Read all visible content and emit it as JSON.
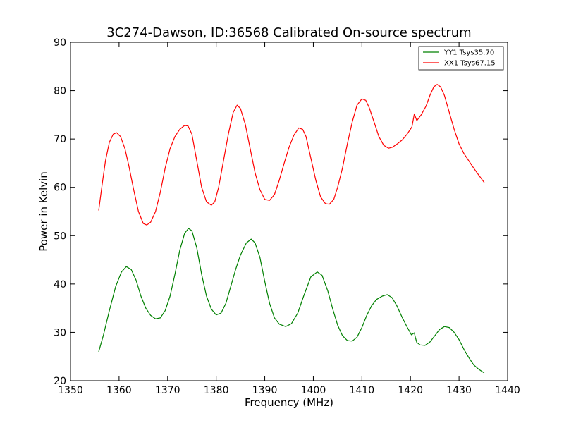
{
  "chart_data": {
    "type": "line",
    "title": "3C274-Dawson, ID:36568 Calibrated On-source spectrum",
    "xlabel": "Frequency (MHz)",
    "ylabel": "Power in Kelvin",
    "xlim": [
      1350,
      1440
    ],
    "ylim": [
      20,
      90
    ],
    "xticks": [
      "1350",
      "1360",
      "1370",
      "1380",
      "1390",
      "1400",
      "1410",
      "1420",
      "1430",
      "1440"
    ],
    "yticks": [
      "20",
      "30",
      "40",
      "50",
      "60",
      "70",
      "80",
      "90"
    ],
    "grid": false,
    "legend_position": "top-right",
    "series": [
      {
        "name": "YY1 Tsys35.70",
        "color": "#008000",
        "points": [
          [
            1355.8,
            26.0
          ],
          [
            1356.8,
            29.5
          ],
          [
            1358.0,
            34.5
          ],
          [
            1359.3,
            39.5
          ],
          [
            1360.5,
            42.5
          ],
          [
            1361.5,
            43.6
          ],
          [
            1362.5,
            43.0
          ],
          [
            1363.5,
            40.8
          ],
          [
            1364.5,
            37.5
          ],
          [
            1365.5,
            35.0
          ],
          [
            1366.5,
            33.5
          ],
          [
            1367.5,
            32.8
          ],
          [
            1368.5,
            33.0
          ],
          [
            1369.5,
            34.5
          ],
          [
            1370.5,
            37.5
          ],
          [
            1371.5,
            42.0
          ],
          [
            1372.5,
            47.0
          ],
          [
            1373.5,
            50.5
          ],
          [
            1374.3,
            51.5
          ],
          [
            1375.0,
            51.0
          ],
          [
            1376.0,
            47.5
          ],
          [
            1377.0,
            42.0
          ],
          [
            1378.0,
            37.5
          ],
          [
            1379.0,
            34.8
          ],
          [
            1380.0,
            33.6
          ],
          [
            1381.0,
            34.0
          ],
          [
            1382.0,
            36.0
          ],
          [
            1383.0,
            39.5
          ],
          [
            1384.0,
            43.0
          ],
          [
            1385.0,
            46.0
          ],
          [
            1386.2,
            48.5
          ],
          [
            1387.2,
            49.3
          ],
          [
            1388.0,
            48.5
          ],
          [
            1389.0,
            45.5
          ],
          [
            1390.0,
            40.5
          ],
          [
            1391.0,
            36.0
          ],
          [
            1392.0,
            33.0
          ],
          [
            1393.0,
            31.7
          ],
          [
            1394.3,
            31.2
          ],
          [
            1395.5,
            31.8
          ],
          [
            1396.8,
            34.0
          ],
          [
            1398.0,
            37.5
          ],
          [
            1399.5,
            41.5
          ],
          [
            1400.8,
            42.5
          ],
          [
            1401.8,
            41.8
          ],
          [
            1403.0,
            38.5
          ],
          [
            1404.0,
            34.8
          ],
          [
            1405.0,
            31.5
          ],
          [
            1406.0,
            29.3
          ],
          [
            1407.0,
            28.3
          ],
          [
            1408.0,
            28.2
          ],
          [
            1409.0,
            29.0
          ],
          [
            1410.0,
            31.0
          ],
          [
            1411.0,
            33.5
          ],
          [
            1412.0,
            35.5
          ],
          [
            1413.0,
            36.8
          ],
          [
            1414.2,
            37.5
          ],
          [
            1415.2,
            37.8
          ],
          [
            1416.2,
            37.2
          ],
          [
            1417.2,
            35.5
          ],
          [
            1418.2,
            33.3
          ],
          [
            1419.2,
            31.3
          ],
          [
            1420.2,
            29.5
          ],
          [
            1420.8,
            29.9
          ],
          [
            1421.0,
            29.0
          ],
          [
            1421.3,
            27.9
          ],
          [
            1422.0,
            27.4
          ],
          [
            1423.0,
            27.3
          ],
          [
            1424.0,
            28.0
          ],
          [
            1425.0,
            29.3
          ],
          [
            1426.0,
            30.6
          ],
          [
            1427.0,
            31.2
          ],
          [
            1428.0,
            31.0
          ],
          [
            1429.0,
            30.0
          ],
          [
            1430.0,
            28.5
          ],
          [
            1431.0,
            26.5
          ],
          [
            1432.0,
            24.8
          ],
          [
            1433.0,
            23.3
          ],
          [
            1434.0,
            22.4
          ],
          [
            1435.2,
            21.6
          ]
        ]
      },
      {
        "name": "XX1 Tsys67.15",
        "color": "#ff0000",
        "points": [
          [
            1355.8,
            55.2
          ],
          [
            1356.5,
            60.5
          ],
          [
            1357.2,
            65.5
          ],
          [
            1358.0,
            69.3
          ],
          [
            1358.8,
            71.0
          ],
          [
            1359.5,
            71.3
          ],
          [
            1360.3,
            70.5
          ],
          [
            1361.2,
            68.0
          ],
          [
            1362.0,
            64.5
          ],
          [
            1363.0,
            59.5
          ],
          [
            1364.0,
            55.0
          ],
          [
            1365.0,
            52.5
          ],
          [
            1365.7,
            52.2
          ],
          [
            1366.5,
            52.8
          ],
          [
            1367.5,
            55.0
          ],
          [
            1368.5,
            59.0
          ],
          [
            1369.5,
            64.0
          ],
          [
            1370.5,
            68.0
          ],
          [
            1371.5,
            70.5
          ],
          [
            1372.5,
            72.0
          ],
          [
            1373.5,
            72.8
          ],
          [
            1374.2,
            72.7
          ],
          [
            1375.0,
            71.0
          ],
          [
            1376.0,
            65.5
          ],
          [
            1377.0,
            60.0
          ],
          [
            1378.0,
            57.0
          ],
          [
            1379.0,
            56.3
          ],
          [
            1379.7,
            57.0
          ],
          [
            1380.5,
            60.0
          ],
          [
            1381.5,
            65.5
          ],
          [
            1382.5,
            71.0
          ],
          [
            1383.5,
            75.5
          ],
          [
            1384.3,
            77.0
          ],
          [
            1385.0,
            76.3
          ],
          [
            1386.0,
            73.0
          ],
          [
            1387.0,
            68.0
          ],
          [
            1388.0,
            63.0
          ],
          [
            1389.0,
            59.5
          ],
          [
            1390.0,
            57.5
          ],
          [
            1391.0,
            57.3
          ],
          [
            1392.0,
            58.5
          ],
          [
            1393.0,
            61.5
          ],
          [
            1394.0,
            65.0
          ],
          [
            1395.0,
            68.3
          ],
          [
            1396.0,
            70.8
          ],
          [
            1397.0,
            72.3
          ],
          [
            1397.8,
            72.0
          ],
          [
            1398.5,
            70.5
          ],
          [
            1399.5,
            66.0
          ],
          [
            1400.5,
            61.5
          ],
          [
            1401.5,
            58.0
          ],
          [
            1402.5,
            56.6
          ],
          [
            1403.3,
            56.5
          ],
          [
            1404.2,
            57.5
          ],
          [
            1405.0,
            60.0
          ],
          [
            1406.0,
            64.0
          ],
          [
            1407.0,
            69.0
          ],
          [
            1408.0,
            73.5
          ],
          [
            1409.0,
            77.0
          ],
          [
            1410.0,
            78.3
          ],
          [
            1410.8,
            78.0
          ],
          [
            1411.5,
            76.5
          ],
          [
            1412.5,
            73.5
          ],
          [
            1413.5,
            70.5
          ],
          [
            1414.5,
            68.7
          ],
          [
            1415.5,
            68.1
          ],
          [
            1416.3,
            68.3
          ],
          [
            1417.3,
            69.0
          ],
          [
            1418.3,
            69.8
          ],
          [
            1419.3,
            71.0
          ],
          [
            1420.3,
            72.5
          ],
          [
            1420.8,
            75.2
          ],
          [
            1421.3,
            73.8
          ],
          [
            1422.2,
            75.0
          ],
          [
            1423.2,
            76.8
          ],
          [
            1424.0,
            79.0
          ],
          [
            1424.8,
            80.8
          ],
          [
            1425.5,
            81.3
          ],
          [
            1426.2,
            80.8
          ],
          [
            1427.0,
            79.0
          ],
          [
            1428.0,
            75.5
          ],
          [
            1429.0,
            72.0
          ],
          [
            1430.0,
            69.0
          ],
          [
            1431.0,
            67.0
          ],
          [
            1432.0,
            65.5
          ],
          [
            1433.0,
            64.0
          ],
          [
            1434.0,
            62.6
          ],
          [
            1435.2,
            61.0
          ]
        ]
      }
    ]
  }
}
